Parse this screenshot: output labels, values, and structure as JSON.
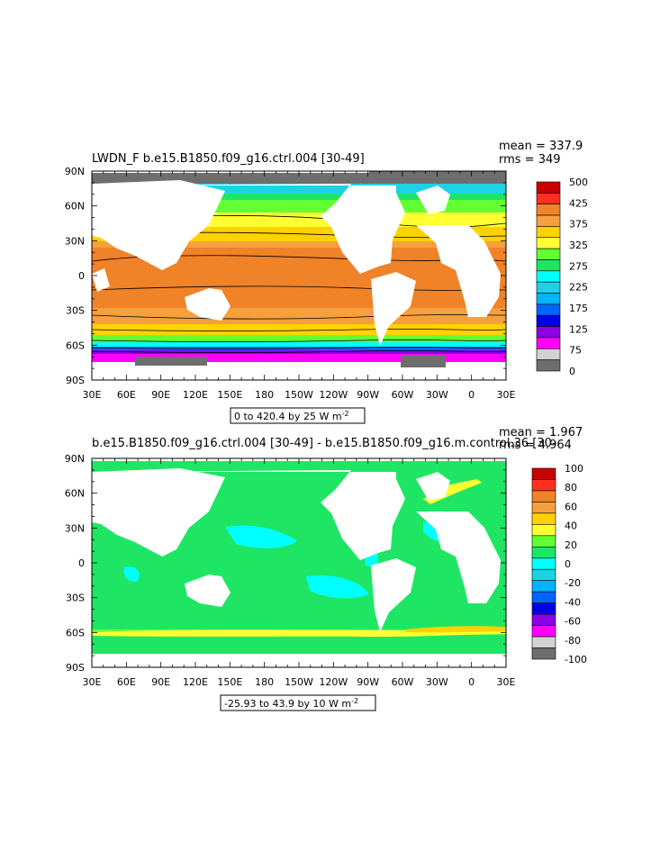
{
  "chart_data": [
    {
      "type": "heatmap",
      "title": "LWDN_F  b.e15.B1850.f09_g16.ctrl.004  [30-49]",
      "stats": {
        "mean_label": "mean = 337.9",
        "rms_label": "rms = 349"
      },
      "range_label": "0 to 420.4 by 25  W m",
      "units_exponent": "-2",
      "x_ticks": [
        "30E",
        "60E",
        "90E",
        "120E",
        "150E",
        "180",
        "150W",
        "120W",
        "90W",
        "60W",
        "30W",
        "0",
        "30E"
      ],
      "y_ticks": [
        "90N",
        "60N",
        "30N",
        "0",
        "30S",
        "60S",
        "90S"
      ],
      "colorbar": {
        "labels": [
          "500",
          "425",
          "375",
          "325",
          "275",
          "225",
          "175",
          "125",
          "75",
          "0"
        ],
        "colors": [
          "#c80000",
          "#ff3020",
          "#f08228",
          "#f5a03c",
          "#ffd200",
          "#ffff32",
          "#64ff32",
          "#1ee664",
          "#00ffff",
          "#1ed2e6",
          "#00b4ff",
          "#0064ff",
          "#0000e6",
          "#8c00e6",
          "#ff00ff",
          "#d2d2d2",
          "#6e6e6e"
        ]
      }
    },
    {
      "type": "heatmap",
      "title": "b.e15.B1850.f09_g16.ctrl.004  [30-49]  -  b.e15.B1850.f09_g16.m.control.36  [30-",
      "stats": {
        "mean_label": "mean = 1.967",
        "rms_label": "rms = 4.964"
      },
      "range_label": "-25.93 to 43.9 by 10  W m",
      "units_exponent": "-2",
      "x_ticks": [
        "30E",
        "60E",
        "90E",
        "120E",
        "150E",
        "180",
        "150W",
        "120W",
        "90W",
        "60W",
        "30W",
        "0",
        "30E"
      ],
      "y_ticks": [
        "90N",
        "60N",
        "30N",
        "0",
        "30S",
        "60S",
        "90S"
      ],
      "colorbar": {
        "labels": [
          "100",
          "80",
          "60",
          "40",
          "20",
          "0",
          "-20",
          "-40",
          "-60",
          "-80",
          "-100"
        ],
        "colors": [
          "#c80000",
          "#ff3020",
          "#f08228",
          "#f5a03c",
          "#ffd200",
          "#ffff32",
          "#64ff32",
          "#1ee664",
          "#00ffff",
          "#1ed2e6",
          "#00b4ff",
          "#0064ff",
          "#0000e6",
          "#8c00e6",
          "#ff00ff",
          "#d2d2d2",
          "#6e6e6e"
        ]
      }
    }
  ]
}
